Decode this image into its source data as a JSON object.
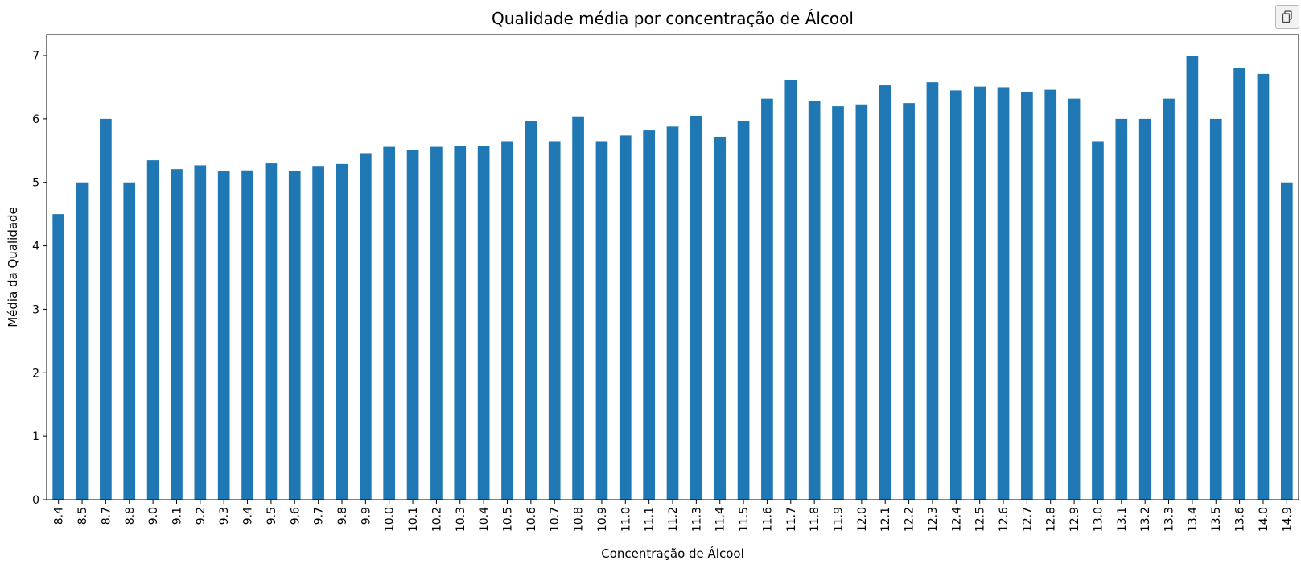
{
  "toolbar": {
    "copy_icon": "copy-icon"
  },
  "chart_data": {
    "type": "bar",
    "title": "Qualidade média por concentração de Álcool",
    "xlabel": "Concentração de Álcool",
    "ylabel": "Média da Qualidade",
    "ylim": [
      0,
      7.33
    ],
    "yticks": [
      0,
      1,
      2,
      3,
      4,
      5,
      6,
      7
    ],
    "grid": false,
    "bar_color": "#1f77b4",
    "categories": [
      "8.4",
      "8.5",
      "8.7",
      "8.8",
      "9.0",
      "9.1",
      "9.2",
      "9.3",
      "9.4",
      "9.5",
      "9.6",
      "9.7",
      "9.8",
      "9.9",
      "10.0",
      "10.1",
      "10.2",
      "10.3",
      "10.4",
      "10.5",
      "10.6",
      "10.7",
      "10.8",
      "10.9",
      "11.0",
      "11.1",
      "11.2",
      "11.3",
      "11.4",
      "11.5",
      "11.6",
      "11.7",
      "11.8",
      "11.9",
      "12.0",
      "12.1",
      "12.2",
      "12.3",
      "12.4",
      "12.5",
      "12.6",
      "12.7",
      "12.8",
      "12.9",
      "13.0",
      "13.1",
      "13.2",
      "13.3",
      "13.4",
      "13.5",
      "13.6",
      "14.0",
      "14.9"
    ],
    "values": [
      4.5,
      5.0,
      6.0,
      5.0,
      5.35,
      5.21,
      5.27,
      5.18,
      5.19,
      5.3,
      5.18,
      5.26,
      5.29,
      5.46,
      5.56,
      5.51,
      5.56,
      5.58,
      5.58,
      5.65,
      5.96,
      5.65,
      6.04,
      5.65,
      5.74,
      5.82,
      5.88,
      6.05,
      5.72,
      5.96,
      6.32,
      6.61,
      6.28,
      6.2,
      6.23,
      6.53,
      6.25,
      6.58,
      6.45,
      6.51,
      6.5,
      6.43,
      6.46,
      6.32,
      5.65,
      6.0,
      6.0,
      6.32,
      7.0,
      6.0,
      6.8,
      6.71,
      5.0
    ]
  }
}
